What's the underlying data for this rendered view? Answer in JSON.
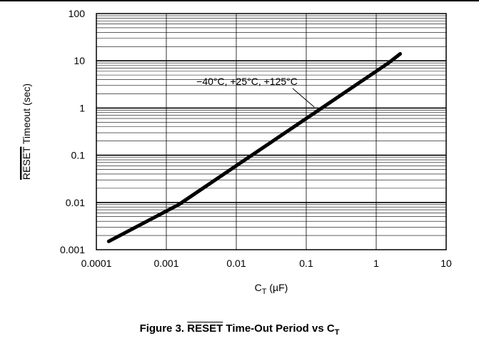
{
  "chart_data": {
    "type": "line",
    "xscale": "log",
    "yscale": "log",
    "xlim": [
      0.0001,
      10
    ],
    "ylim": [
      0.001,
      100
    ],
    "x_ticks": [
      "0.0001",
      "0.001",
      "0.01",
      "0.1",
      "1",
      "10"
    ],
    "y_ticks": [
      "100",
      "10",
      "1",
      "0.1",
      "0.01",
      "0.001"
    ],
    "xlabel": {
      "base": "C",
      "subscript": "T",
      "unit": " (µF)"
    },
    "ylabel": {
      "overlined": "RESET",
      "rest": " Timeout (sec)"
    },
    "grid": true,
    "series": [
      {
        "x": [
          0.00015,
          0.0015,
          0.015,
          0.15,
          1.5,
          2.2
        ],
        "y": [
          0.0015,
          0.009,
          0.09,
          0.9,
          9,
          14
        ]
      }
    ],
    "annotation": {
      "text": "−40°C, +25°C, +125°C",
      "x": 0.13,
      "y": 1.05
    }
  },
  "caption": {
    "prefix": "Figure 3.  ",
    "overlined": "RESET",
    "middle": " Time-Out Period vs C",
    "subscript": "T"
  }
}
